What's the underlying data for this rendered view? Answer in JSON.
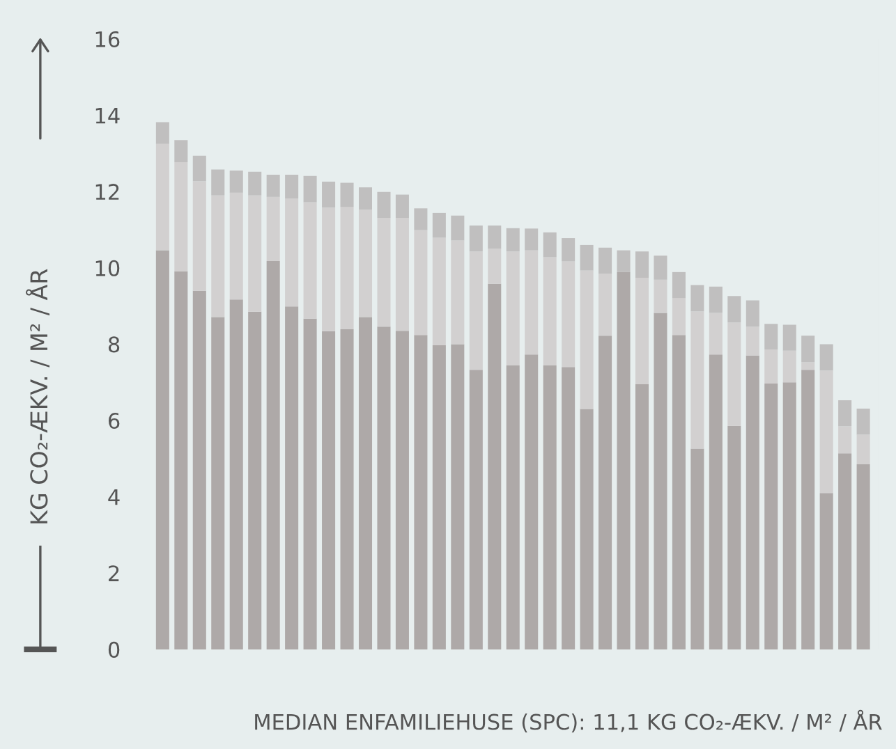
{
  "chart_data": {
    "type": "bar",
    "stacked": true,
    "ylabel": "KG CO₂-ÆKV. / M² / ÅR",
    "annotations": [
      "MEDIAN ENFAMILIEHUSE (SPC): 11,1 KG CO₂-ÆKV. / M² / ÅR"
    ],
    "categories": [
      null,
      null,
      null,
      null,
      null,
      null,
      null,
      null,
      null,
      null,
      null,
      null,
      null,
      null,
      null,
      null,
      null,
      null,
      null,
      null,
      null,
      null,
      null,
      null,
      null,
      null,
      null,
      null,
      null,
      null,
      null,
      null,
      null,
      null,
      null,
      null,
      null,
      null,
      null
    ],
    "ylim": [
      0,
      16
    ],
    "yticks": [
      0,
      2,
      4,
      6,
      8,
      10,
      12,
      14,
      16
    ],
    "tick_labels": "y",
    "series": [
      {
        "color": "#aea9a8",
        "values": [
          10.46,
          9.91,
          9.4,
          8.71,
          9.17,
          8.85,
          10.18,
          8.99,
          8.67,
          8.34,
          8.39,
          8.71,
          8.46,
          8.35,
          8.24,
          7.97,
          8.0,
          7.33,
          9.58,
          7.44,
          7.73,
          7.44,
          7.4,
          6.3,
          8.22,
          9.89,
          6.95,
          8.82,
          8.24,
          5.26,
          7.73,
          5.86,
          7.7,
          6.97,
          7.0,
          7.33,
          4.1,
          5.14,
          4.85
        ]
      },
      {
        "color": "#d2d0d0",
        "values": [
          2.79,
          2.86,
          2.87,
          3.19,
          2.8,
          3.05,
          1.68,
          2.83,
          3.05,
          3.24,
          3.21,
          2.82,
          2.85,
          2.96,
          2.75,
          2.82,
          2.72,
          3.1,
          0.92,
          2.99,
          2.73,
          2.84,
          2.77,
          3.63,
          1.63,
          0,
          2.79,
          0.87,
          0.97,
          3.6,
          1.09,
          2.71,
          0.76,
          0.89,
          0.83,
          0.2,
          3.21,
          0.71,
          0.78
        ]
      },
      {
        "color": "#c0bfbf",
        "values": [
          0.57,
          0.58,
          0.67,
          0.68,
          0.58,
          0.62,
          0.58,
          0.62,
          0.69,
          0.68,
          0.63,
          0.58,
          0.68,
          0.61,
          0.57,
          0.65,
          0.65,
          0.68,
          0.61,
          0.61,
          0.57,
          0.65,
          0.61,
          0.67,
          0.68,
          0.57,
          0.69,
          0.63,
          0.68,
          0.69,
          0.69,
          0.69,
          0.69,
          0.67,
          0.68,
          0.69,
          0.69,
          0.68,
          0.68
        ]
      }
    ]
  }
}
